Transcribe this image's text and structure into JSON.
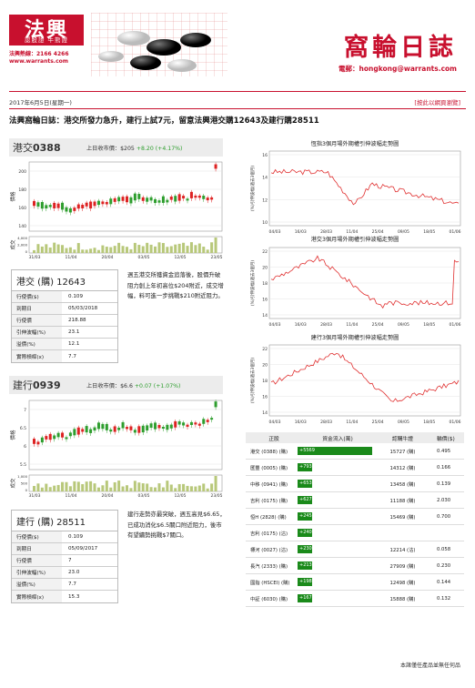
{
  "brand": {
    "logo": "法興",
    "sub": "認股證 牛熊證",
    "hotline": "法興熱線：2166 4266",
    "site": "www.warrants.com"
  },
  "title": "窩輪日誌",
  "email": "電郵：hongkong@warrants.com",
  "date": "2017年6月5日(星期一)",
  "link": "[按此以網頁瀏覽]",
  "headline": "法興窩輪日誌：港交所發力急升，建行上試7元，留意法興港交購12643及建行購28511",
  "hkex": {
    "code_prefix": "港交",
    "code": "0388",
    "price_label": "上日收市價：$205",
    "change": "+8.20 (+4.17%)",
    "chart": {
      "y_ticks": [
        "200",
        "180",
        "160",
        "140"
      ],
      "y_label": "價格",
      "vol_label": "成交",
      "vol_ticks": [
        "4,000",
        "2,000",
        "0"
      ],
      "x_ticks": [
        "31/03",
        "11/04",
        "20/04",
        "03/05",
        "12/05",
        "23/05"
      ]
    },
    "warrant": {
      "title": "港交 (購) 12643",
      "rows": [
        [
          "行使價($)",
          "0.109"
        ],
        [
          "到期日",
          "05/03/2018"
        ],
        [
          "行使價",
          "218.88"
        ],
        [
          "引伸波幅(%)",
          "23.1"
        ],
        [
          "溢價(%)",
          "12.1"
        ],
        [
          "實際槓桿(x)",
          "7.7"
        ]
      ]
    },
    "comment": "週五港交所獲資金追落後，股價升破阻力創上年初高位$204附近，成交增幅，料可進一步挑戰$210附近阻力。"
  },
  "ccb": {
    "code_prefix": "建行",
    "code": "0939",
    "price_label": "上日收市價：$6.6",
    "change": "+0.07 (+1.07%)",
    "chart": {
      "y_ticks": [
        "7",
        "6.5",
        "6",
        "5.5"
      ],
      "y_label": "價格",
      "vol_label": "成交",
      "vol_ticks": [
        "1,000",
        "500",
        "0"
      ],
      "x_ticks": [
        "31/03",
        "11/04",
        "20/04",
        "03/05",
        "12/05",
        "23/05"
      ]
    },
    "warrant": {
      "title": "建行 (購) 28511",
      "rows": [
        [
          "行使價($)",
          "0.109"
        ],
        [
          "到期日",
          "05/09/2017"
        ],
        [
          "行使價",
          "7"
        ],
        [
          "引伸波幅(%)",
          "23.0"
        ],
        [
          "溢價(%)",
          "7.7"
        ],
        [
          "實際槓桿(x)",
          "15.3"
        ]
      ]
    },
    "comment": "建行走勢亦最突破，週五高見$6.65，已成功消化$6.5關口附近阻力，後市有望續勢挑戰$7關口。"
  },
  "iv_charts": [
    {
      "title": "恆指3個月場外期權引伸波幅走勢圖",
      "y_label": "(%)引伸波幅(過去3個月)",
      "y_ticks": [
        "16",
        "14",
        "12",
        "10"
      ],
      "x_ticks": [
        "04/03",
        "16/03",
        "28/03",
        "11/04",
        "25/04",
        "09/05",
        "18/05",
        "01/06"
      ]
    },
    {
      "title": "港交3個月場外期權引伸波幅走勢圖",
      "y_label": "(%)引伸波幅(過去3個月)",
      "y_ticks": [
        "22",
        "20",
        "18",
        "16",
        "14"
      ],
      "x_ticks": [
        "04/03",
        "16/03",
        "28/03",
        "11/04",
        "25/04",
        "09/05",
        "18/05",
        "01/06"
      ]
    },
    {
      "title": "建行3個月場外期權引伸波幅走勢圖",
      "y_label": "(%)引伸波幅(過去3個月)",
      "y_ticks": [
        "22",
        "20",
        "18",
        "16",
        "14"
      ],
      "x_ticks": [
        "04/03",
        "16/03",
        "28/03",
        "11/04",
        "25/04",
        "09/05",
        "18/05",
        "01/06"
      ]
    }
  ],
  "flow": {
    "headers": [
      "正股",
      "資金流入(萬)",
      "認購牛證",
      "輪價($)"
    ],
    "rows": [
      {
        "stock": "港交 (0388) (購)",
        "flow": "+5569",
        "frac": 1.0,
        "code": "15727 (購)",
        "price": "0.495"
      },
      {
        "stock": "匯豐 (0005) (購)",
        "flow": "+793",
        "frac": 0.14,
        "code": "14312 (購)",
        "price": "0.166"
      },
      {
        "stock": "中移 (0941) (購)",
        "flow": "+653",
        "frac": 0.12,
        "code": "13458 (購)",
        "price": "0.139"
      },
      {
        "stock": "吉利 (0175) (購)",
        "flow": "+627",
        "frac": 0.11,
        "code": "11188 (購)",
        "price": "2.030"
      },
      {
        "stock": "恒H (2828) (購)",
        "flow": "+245",
        "frac": 0.05,
        "code": "15469 (購)",
        "price": "0.700"
      },
      {
        "stock": "吉利 (0175) (沽)",
        "flow": "+240",
        "frac": 0.05,
        "code": "",
        "price": ""
      },
      {
        "stock": "標河 (0027) (沽)",
        "flow": "+230",
        "frac": 0.05,
        "code": "12214 (沽)",
        "price": "0.058"
      },
      {
        "stock": "長汽 (2333) (購)",
        "flow": "+213",
        "frac": 0.04,
        "code": "27909 (購)",
        "price": "0.230"
      },
      {
        "stock": "國指 (HSCEI) (購)",
        "flow": "+198",
        "frac": 0.04,
        "code": "12498 (購)",
        "price": "0.144"
      },
      {
        "stock": "中証 (6030) (購)",
        "flow": "+167",
        "frac": 0.03,
        "code": "15888 (購)",
        "price": "0.132"
      }
    ]
  },
  "footer": "本諸僅任產品並無任何品"
}
